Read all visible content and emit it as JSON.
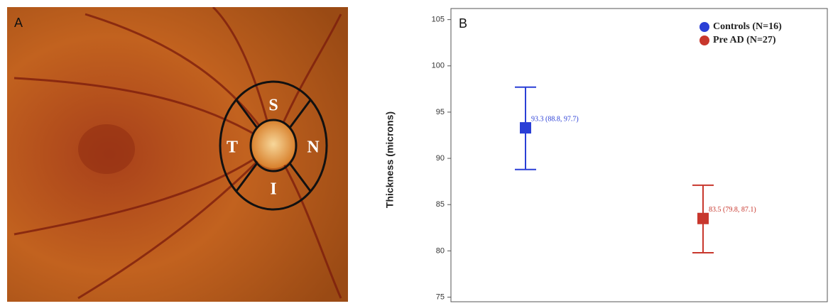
{
  "panel_a": {
    "label": "A",
    "sectors": {
      "superior": "S",
      "temporal": "T",
      "nasal": "N",
      "inferior": "I"
    }
  },
  "chart_data": {
    "type": "errorbar",
    "label": "B",
    "y_label": "Thickness (microns)",
    "ylim": [
      74.5,
      106.2
    ],
    "yticks": [
      75,
      80,
      85,
      90,
      95,
      100,
      105
    ],
    "legend": "top-right",
    "series": [
      {
        "name": "Controls (N=16)",
        "color": "#2a3fd6",
        "values": [
          93.3
        ],
        "lower": [
          88.8
        ],
        "upper": [
          97.7
        ],
        "value_labels": [
          "93.3 (88.8, 97.7)"
        ]
      },
      {
        "name": "Pre AD (N=27)",
        "color": "#c8372d",
        "values": [
          83.5
        ],
        "lower": [
          79.8
        ],
        "upper": [
          87.1
        ],
        "value_labels": [
          "83.5 (79.8, 87.1)"
        ]
      }
    ]
  }
}
